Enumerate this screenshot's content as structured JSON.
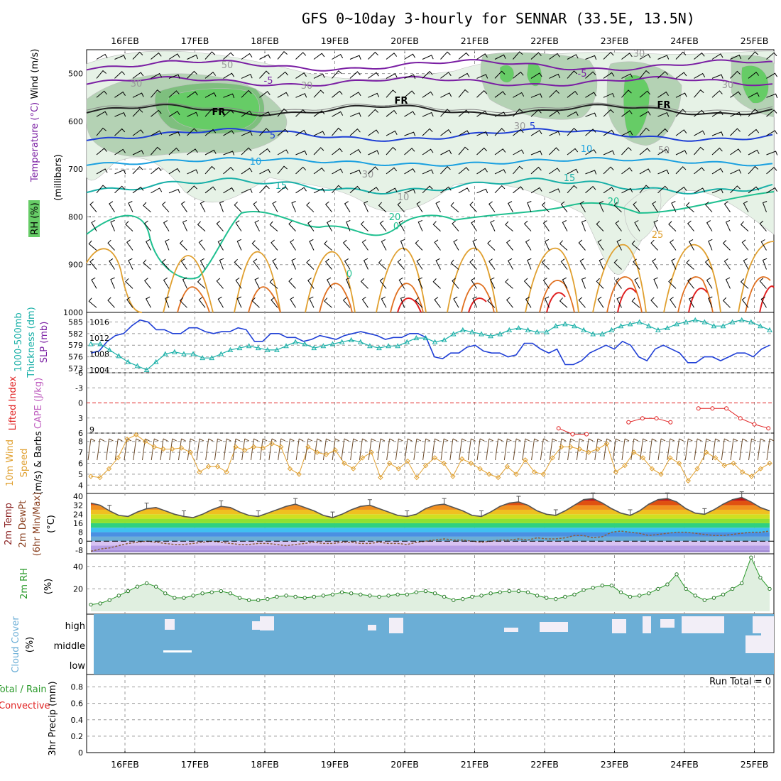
{
  "title": "GFS 0~10day 3-hourly for SENNAR (33.5E, 13.5N)",
  "dates": [
    "16FEB",
    "17FEB",
    "18FEB",
    "19FEB",
    "20FEB",
    "21FEB",
    "22FEB",
    "23FEB",
    "24FEB",
    "25FEB"
  ],
  "colors": {
    "rh_light": "#e6f2e6",
    "rh_mid": "#b4d2b4",
    "rh_dark": "#7ebf7e",
    "rh_green": "#66cc66",
    "purple": "#7a1fa3",
    "blue": "#1f3fd6",
    "lightblue": "#1aa0e0",
    "teal": "#1ab0a8",
    "teal2": "#20c090",
    "orange": "#e0a030",
    "orange2": "#e07020",
    "red": "#e02020",
    "gray_grid": "#aaaaaa",
    "cloud": "#6baed6",
    "cloud_free": "#f2eef7"
  },
  "panels": {
    "upper": {
      "ylabel_wind": "Wind (m/s)",
      "ylabel_temp": "Temperature (°C)",
      "ylabel_rh": "RH (%)",
      "ylabel_units": "(millibars)",
      "yticks": [
        "500",
        "600",
        "700",
        "800",
        "900",
        "1000"
      ],
      "contour_labels": [
        "-5",
        "FR",
        "5",
        "10",
        "15",
        "20",
        "25",
        "30",
        "50",
        "70",
        "0"
      ]
    },
    "thickness": {
      "ylabel1": "1000-500mb",
      "ylabel2": "Thickness (dm)",
      "ylabel3": "SLP (mb)",
      "yticks_left": [
        "585",
        "582",
        "579",
        "576",
        "573"
      ],
      "yticks_right": [
        "1016",
        "1012",
        "1008",
        "1004"
      ]
    },
    "cape": {
      "ylabel1": "Lifted Index",
      "ylabel2": "CAPE (J/kg)",
      "yticks": [
        "-6",
        "-3",
        "0",
        "3",
        "6"
      ],
      "yticks_right": [
        "9"
      ]
    },
    "wind10": {
      "ylabel1": "10m Wind",
      "ylabel2": "Speed",
      "ylabel3": "(m/s) & Barbs",
      "yticks": [
        "8",
        "7",
        "6",
        "5",
        "4"
      ]
    },
    "temp2m": {
      "ylabel1": "2m Temp",
      "ylabel2": "2m DewPt",
      "ylabel3": "(6hr Min/Max)",
      "ylabel4": "(°C)",
      "yticks": [
        "40",
        "32",
        "24",
        "16",
        "8",
        "0",
        "-8"
      ]
    },
    "rh2m": {
      "ylabel1": "2m RH",
      "ylabel2": "(%)",
      "yticks": [
        "40",
        "20"
      ]
    },
    "cloud": {
      "ylabel1": "Cloud Cover",
      "ylabel2": "(%)",
      "levels": [
        "high",
        "middle",
        "low"
      ]
    },
    "precip": {
      "ylabel1": "Total / Rain",
      "ylabel2": "Convective",
      "ylabel3": "3hr Precip (mm)",
      "yticks": [
        "0.8",
        "0.6",
        "0.4",
        "0.2",
        "0"
      ],
      "run_total": "Run Total = 0"
    }
  },
  "chart_data": [
    {
      "type": "line",
      "name": "1000-500mb thickness",
      "y_unit": "dm",
      "ylim": [
        573,
        586
      ],
      "values": [
        577,
        577.5,
        580,
        581.5,
        582,
        584,
        585.5,
        585,
        583,
        583,
        582,
        582,
        583.5,
        583.5,
        582.5,
        582,
        582.5,
        582.5,
        583.5,
        583,
        580,
        580,
        582,
        582,
        581,
        581,
        580,
        580.5,
        581.5,
        581,
        580.5,
        581.5,
        582,
        582.5,
        582,
        581.5,
        580.5,
        581,
        581,
        582,
        582,
        581,
        576,
        575.5,
        577,
        577,
        578.5,
        579,
        577.5,
        577,
        577,
        576,
        576.5,
        579.5,
        579.5,
        578,
        577,
        578,
        574,
        574,
        575,
        577,
        578,
        579,
        578,
        580,
        579,
        576,
        575,
        578,
        579,
        578,
        577,
        574.5,
        574.5,
        576,
        576,
        575,
        576,
        577,
        577,
        576,
        578,
        579
      ]
    },
    {
      "type": "line",
      "name": "SLP",
      "y_unit": "mb",
      "ylim": [
        1004,
        1017
      ],
      "values": [
        1010.5,
        1010.5,
        1009,
        1007.5,
        1006,
        1005,
        1004,
        1006,
        1008,
        1008.5,
        1008,
        1008,
        1007,
        1007,
        1008,
        1009,
        1009.5,
        1010,
        1009.5,
        1009,
        1009,
        1010,
        1011,
        1010.5,
        1009.5,
        1010,
        1010.5,
        1011,
        1011.5,
        1011,
        1010,
        1009.5,
        1010,
        1010,
        1011,
        1012,
        1012,
        1011,
        1011.5,
        1013,
        1014,
        1013.5,
        1013,
        1012.5,
        1013,
        1014,
        1014.5,
        1014,
        1013.5,
        1013.5,
        1015,
        1015.5,
        1015,
        1014,
        1013,
        1013,
        1014,
        1015,
        1015.5,
        1016,
        1015,
        1014,
        1014.5,
        1015.5,
        1016,
        1016.5,
        1016,
        1015,
        1015,
        1016,
        1016.5,
        1016,
        1015,
        1014
      ]
    },
    {
      "type": "line",
      "name": "CAPE",
      "y_unit": "J/kg",
      "note": "visible values on right axis",
      "values_segments": [
        [
          22.2,
          9.5
        ],
        [
          22.4,
          9.8
        ],
        [
          22.6,
          9.8
        ],
        [
          23.2,
          9.2
        ],
        [
          23.4,
          9.0
        ],
        [
          23.6,
          9.0
        ],
        [
          23.8,
          9.2
        ],
        [
          24.2,
          8.5
        ],
        [
          24.4,
          8.5
        ],
        [
          24.6,
          8.5
        ],
        [
          24.8,
          9.0
        ],
        [
          25.0,
          9.3
        ],
        [
          25.2,
          9.5
        ]
      ]
    },
    {
      "type": "line",
      "name": "10m wind speed",
      "y_unit": "m/s",
      "ylim": [
        3.5,
        8.5
      ],
      "values": [
        4.8,
        4.7,
        5.5,
        6.5,
        8.2,
        8.6,
        8.0,
        7.5,
        7.3,
        7.3,
        7.4,
        7.0,
        5.2,
        5.7,
        5.7,
        5.2,
        7.5,
        7.2,
        7.5,
        7.4,
        7.8,
        7.5,
        5.5,
        5.0,
        7.5,
        7.0,
        6.8,
        7.2,
        6.0,
        5.5,
        6.5,
        7.0,
        4.7,
        6.0,
        5.5,
        6.2,
        4.7,
        5.8,
        6.5,
        6.0,
        4.8,
        6.4,
        6.0,
        5.5,
        5.0,
        4.7,
        5.7,
        5.0,
        6.3,
        5.2,
        5.0,
        6.5,
        7.5,
        7.5,
        7.3,
        7.0,
        7.3,
        7.8,
        5.2,
        5.8,
        7.0,
        6.5,
        5.5,
        5.0,
        6.5,
        6.0,
        4.4,
        5.5,
        7.0,
        6.5,
        5.8,
        6.0,
        5.2,
        4.8,
        5.5,
        6.0
      ]
    },
    {
      "type": "area",
      "name": "2m temperature",
      "y_unit": "°C",
      "ylim": [
        -10,
        40
      ],
      "values": [
        34,
        32,
        27,
        23,
        22,
        26,
        29,
        30,
        27,
        24,
        22,
        21,
        24,
        28,
        31,
        30,
        26,
        23,
        22,
        25,
        28,
        31,
        33,
        30,
        27,
        23,
        21,
        24,
        28,
        31,
        32,
        29,
        26,
        23,
        22,
        24,
        29,
        32,
        33,
        30,
        27,
        23,
        22,
        26,
        31,
        34,
        35,
        32,
        27,
        24,
        23,
        27,
        32,
        37,
        38,
        34,
        29,
        25,
        23,
        27,
        33,
        37,
        38,
        35,
        29,
        25,
        24,
        28,
        33,
        37,
        39,
        35,
        30,
        27
      ]
    },
    {
      "type": "line",
      "name": "2m dewpoint",
      "y_unit": "°C",
      "values": [
        -9,
        -7,
        -6,
        -4,
        -2,
        -1,
        0,
        -1,
        -2,
        -3,
        -3,
        -2,
        -1,
        0,
        -1,
        -2,
        -3,
        -3,
        -2,
        -2,
        -3,
        -4,
        -3,
        -2,
        -1,
        -2,
        -2,
        -1,
        -1,
        -2,
        -2,
        -1,
        -2,
        -2,
        -3,
        -1,
        0,
        1,
        2,
        1,
        1,
        0,
        -1,
        0,
        1,
        1,
        2,
        1,
        3,
        2,
        2,
        3,
        5,
        5,
        3,
        4,
        8,
        9,
        8,
        7,
        5,
        6,
        7,
        8,
        8,
        7,
        6,
        5,
        5,
        6,
        7,
        8,
        8,
        9
      ]
    },
    {
      "type": "area",
      "name": "2m RH",
      "y_unit": "%",
      "ylim": [
        0,
        50
      ],
      "values": [
        6,
        7,
        10,
        14,
        18,
        22,
        25,
        22,
        16,
        12,
        12,
        14,
        16,
        17,
        18,
        16,
        12,
        10,
        10,
        11,
        13,
        14,
        13,
        12,
        13,
        14,
        15,
        17,
        16,
        15,
        14,
        13,
        14,
        15,
        15,
        17,
        18,
        16,
        13,
        10,
        11,
        13,
        14,
        16,
        17,
        18,
        18,
        17,
        14,
        12,
        11,
        13,
        15,
        19,
        21,
        23,
        23,
        17,
        13,
        14,
        16,
        20,
        24,
        33,
        20,
        14,
        10,
        12,
        15,
        20,
        25,
        48,
        30,
        20
      ]
    },
    {
      "type": "table",
      "name": "Cloud cover",
      "levels": [
        "high",
        "middle",
        "low"
      ]
    },
    {
      "type": "bar",
      "name": "3hr Precip",
      "y_unit": "mm",
      "ylim": [
        0,
        0.9
      ],
      "values": [],
      "run_total": 0
    }
  ]
}
